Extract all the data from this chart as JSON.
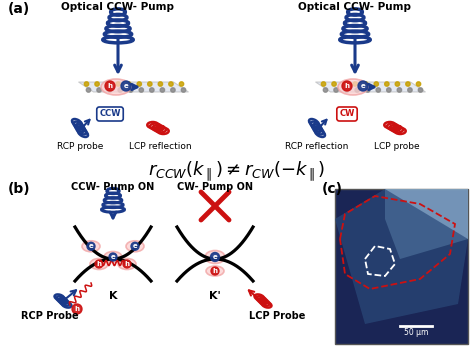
{
  "bg_color": "#ffffff",
  "panel_a_label": "(a)",
  "panel_b_label": "(b)",
  "panel_c_label": "(c)",
  "title_left": "Optical CCW- Pump",
  "title_right": "Optical CCW- Pump",
  "label_rcp_probe_left": "RCP probe",
  "label_lcp_reflection": "LCP reflection",
  "label_rcp_reflection": "RCP reflection",
  "label_lcp_probe_right": "LCP probe",
  "equation": "$r_{CCW}(k_{\\parallel}) \\neq r_{CW}(-k_{\\parallel})$",
  "b_left_title": "CCW- Pump ON",
  "b_right_title": "CW- Pump ON",
  "b_left_label": "RCP Probe",
  "b_right_label": "LCP Probe",
  "k_label": "K",
  "kprime_label": "K'",
  "ccw_label": "CCW",
  "cw_label": "CW",
  "scale_bar": "50 μm",
  "blue": "#1a3a8a",
  "red": "#cc1111",
  "pink": "#f0a0a0",
  "light_pink": "#fdd0d0",
  "gold": "#c8a000",
  "gray_atom": "#888888"
}
